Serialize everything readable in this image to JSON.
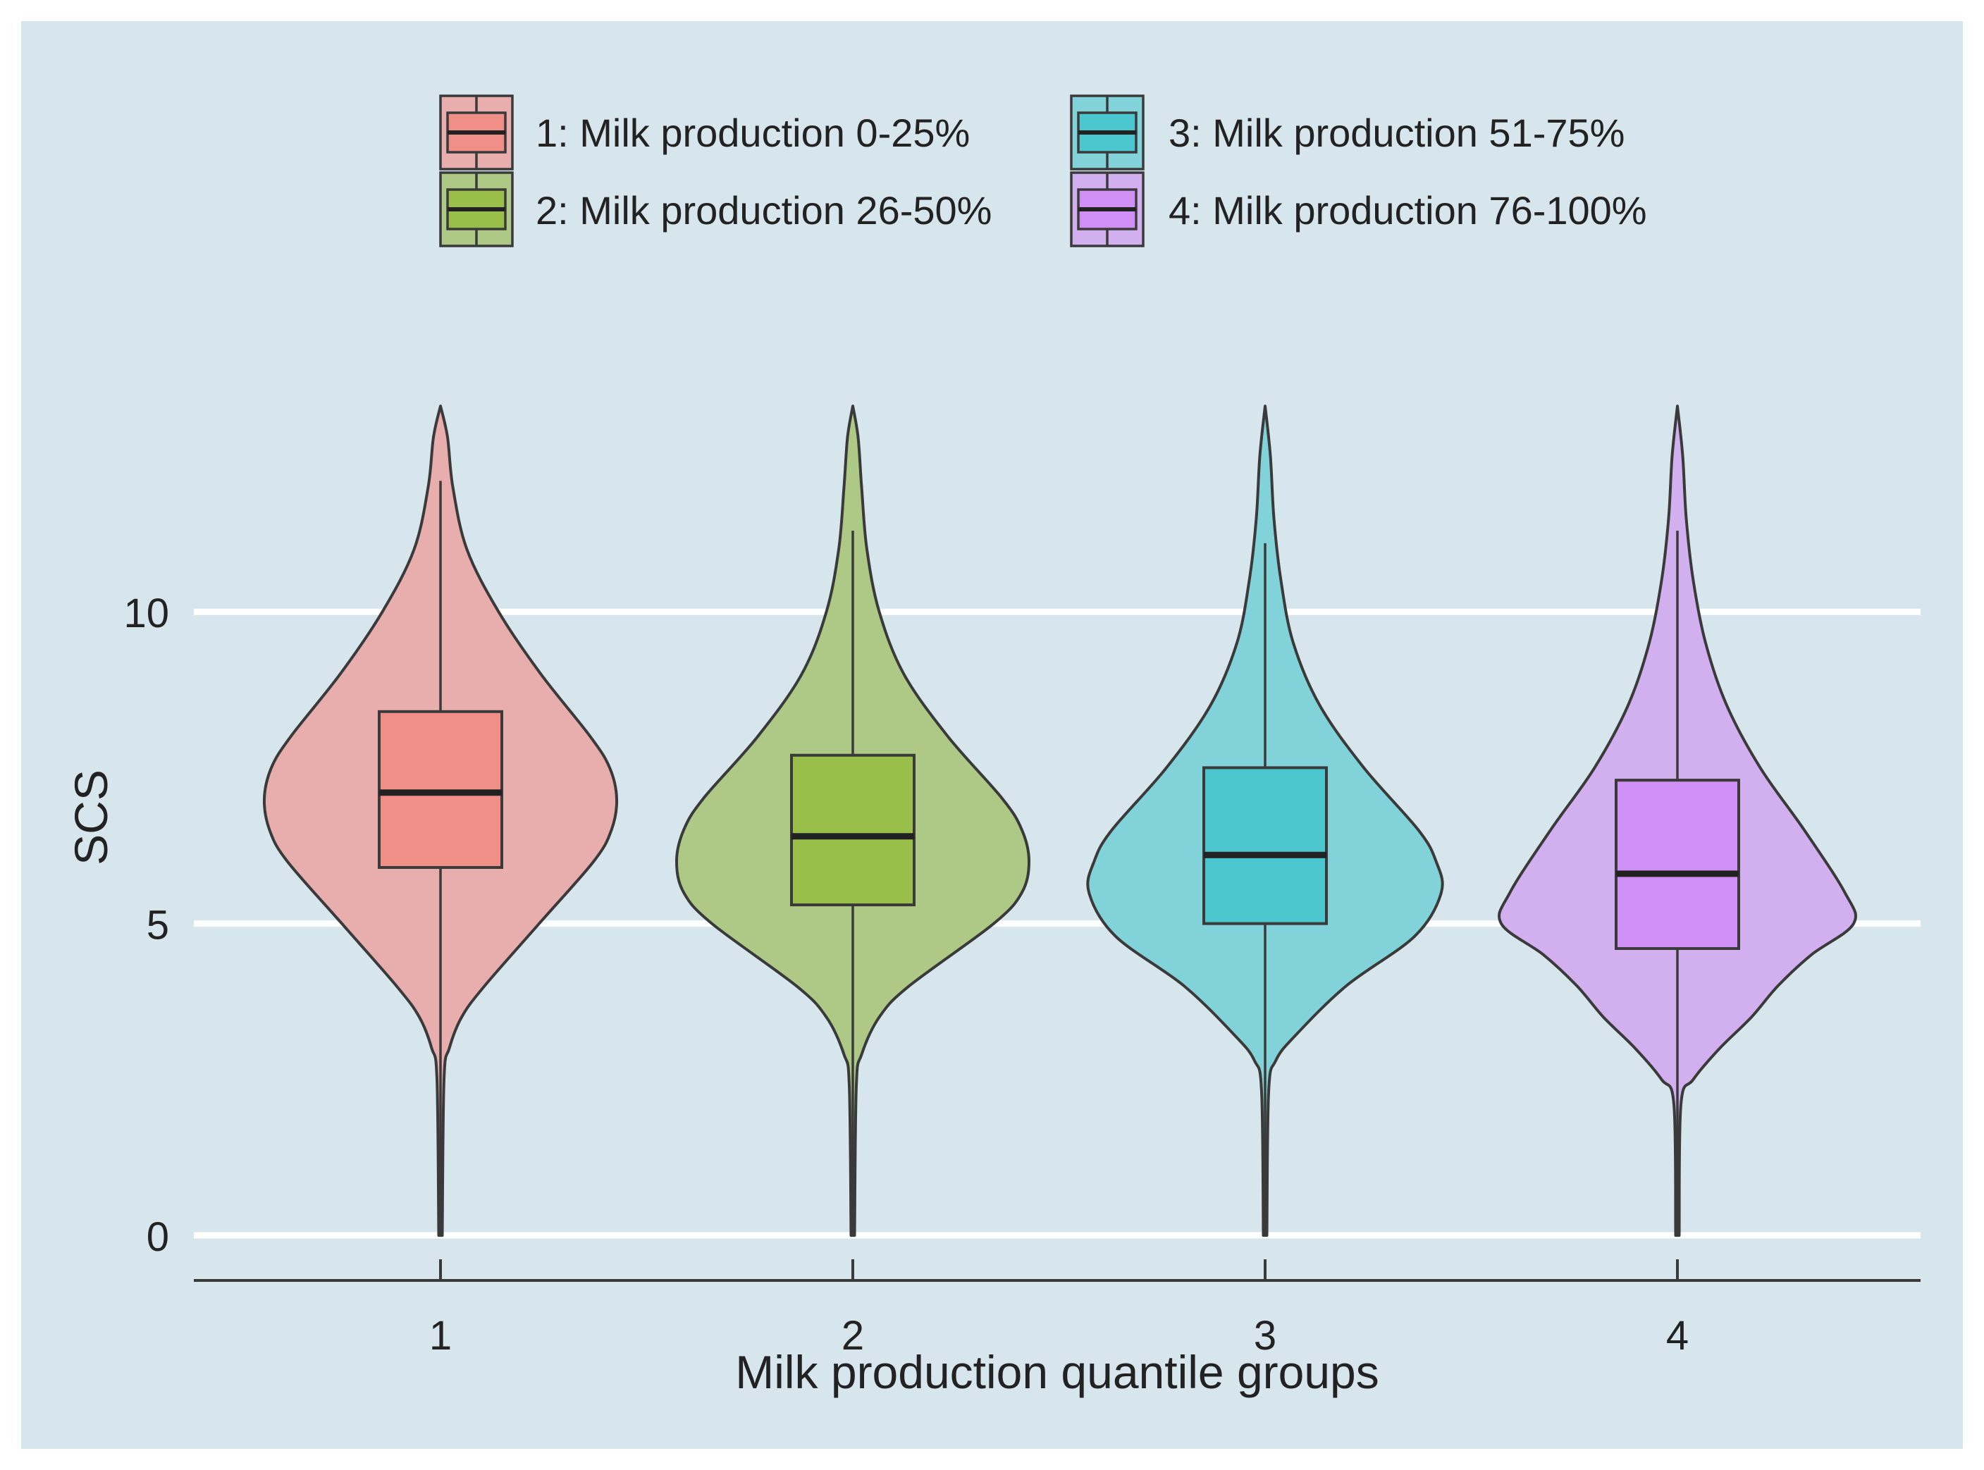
{
  "chart_data": {
    "type": "violin",
    "title": "",
    "xlabel": "Milk production quantile groups",
    "ylabel": "SCS",
    "ylim": [
      -0.7,
      14.5
    ],
    "yticks": [
      0,
      5,
      10
    ],
    "ytick_labels": [
      "0",
      "5",
      "10"
    ],
    "categories": [
      "1",
      "2",
      "3",
      "4"
    ],
    "grid": "horizontal",
    "legend": {
      "position": "top",
      "entries": [
        "1: Milk production 0-25%",
        "2: Milk production 26-50%",
        "3: Milk production 51-75%",
        "4: Milk production 76-100%"
      ]
    },
    "colors": {
      "background": "#d7e5ec",
      "gridline": "#ffffff",
      "outline": "#3a3a3a",
      "violin": [
        "#e8adad",
        "#adc985",
        "#81d3d9",
        "#d2b0f0"
      ],
      "box": [
        "#f08e88",
        "#9abe4a",
        "#4bc6cf",
        "#d08ff4"
      ]
    },
    "series": [
      {
        "name": "1: Milk production 0-25%",
        "category": "1",
        "box": {
          "q1": 5.9,
          "median": 7.1,
          "q3": 8.4,
          "whisker_low": 0.0,
          "whisker_high": 12.1
        },
        "violin": {
          "min": 0.0,
          "max": 13.3,
          "width_profile": [
            [
              0,
              0.01
            ],
            [
              2.5,
              0.02
            ],
            [
              3.0,
              0.05
            ],
            [
              3.5,
              0.12
            ],
            [
              4.0,
              0.25
            ],
            [
              5.0,
              0.56
            ],
            [
              6.0,
              0.87
            ],
            [
              6.5,
              0.97
            ],
            [
              7.0,
              1.0
            ],
            [
              7.5,
              0.96
            ],
            [
              8.0,
              0.85
            ],
            [
              9.0,
              0.57
            ],
            [
              10.0,
              0.33
            ],
            [
              11.0,
              0.15
            ],
            [
              12.0,
              0.07
            ],
            [
              12.8,
              0.04
            ],
            [
              13.3,
              0.0
            ]
          ]
        }
      },
      {
        "name": "2: Milk production 26-50%",
        "category": "2",
        "box": {
          "q1": 5.3,
          "median": 6.4,
          "q3": 7.7,
          "whisker_low": 0.0,
          "whisker_high": 11.3
        },
        "violin": {
          "min": 0.0,
          "max": 13.3,
          "width_profile": [
            [
              0,
              0.01
            ],
            [
              2.4,
              0.02
            ],
            [
              2.9,
              0.05
            ],
            [
              3.5,
              0.15
            ],
            [
              4.0,
              0.32
            ],
            [
              5.0,
              0.8
            ],
            [
              5.5,
              0.96
            ],
            [
              6.0,
              1.0
            ],
            [
              6.5,
              0.96
            ],
            [
              7.0,
              0.85
            ],
            [
              8.0,
              0.54
            ],
            [
              9.0,
              0.29
            ],
            [
              10.0,
              0.15
            ],
            [
              11.0,
              0.08
            ],
            [
              12.0,
              0.05
            ],
            [
              12.8,
              0.03
            ],
            [
              13.3,
              0.0
            ]
          ]
        }
      },
      {
        "name": "3: Milk production 51-75%",
        "category": "3",
        "box": {
          "q1": 5.0,
          "median": 6.1,
          "q3": 7.5,
          "whisker_low": 0.0,
          "whisker_high": 11.1
        },
        "violin": {
          "min": 0.0,
          "max": 13.3,
          "width_profile": [
            [
              0,
              0.01
            ],
            [
              2.3,
              0.02
            ],
            [
              2.8,
              0.06
            ],
            [
              3.2,
              0.17
            ],
            [
              4.0,
              0.46
            ],
            [
              4.8,
              0.85
            ],
            [
              5.5,
              1.0
            ],
            [
              6.0,
              0.97
            ],
            [
              6.5,
              0.87
            ],
            [
              7.5,
              0.56
            ],
            [
              8.5,
              0.31
            ],
            [
              9.5,
              0.16
            ],
            [
              10.5,
              0.09
            ],
            [
              11.5,
              0.05
            ],
            [
              12.5,
              0.03
            ],
            [
              13.3,
              0.0
            ]
          ]
        }
      },
      {
        "name": "4: Milk production 76-100%",
        "category": "4",
        "box": {
          "q1": 4.6,
          "median": 5.8,
          "q3": 7.3,
          "whisker_low": 0.0,
          "whisker_high": 11.3
        },
        "violin": {
          "min": 0.0,
          "max": 13.3,
          "width_profile": [
            [
              0,
              0.01
            ],
            [
              2.1,
              0.02
            ],
            [
              2.5,
              0.09
            ],
            [
              3.0,
              0.24
            ],
            [
              3.5,
              0.42
            ],
            [
              4.0,
              0.57
            ],
            [
              4.5,
              0.76
            ],
            [
              5.0,
              1.0
            ],
            [
              5.5,
              0.95
            ],
            [
              6.5,
              0.72
            ],
            [
              7.5,
              0.47
            ],
            [
              8.5,
              0.28
            ],
            [
              9.5,
              0.16
            ],
            [
              10.5,
              0.09
            ],
            [
              11.5,
              0.05
            ],
            [
              12.5,
              0.03
            ],
            [
              13.3,
              0.0
            ]
          ]
        }
      }
    ]
  }
}
